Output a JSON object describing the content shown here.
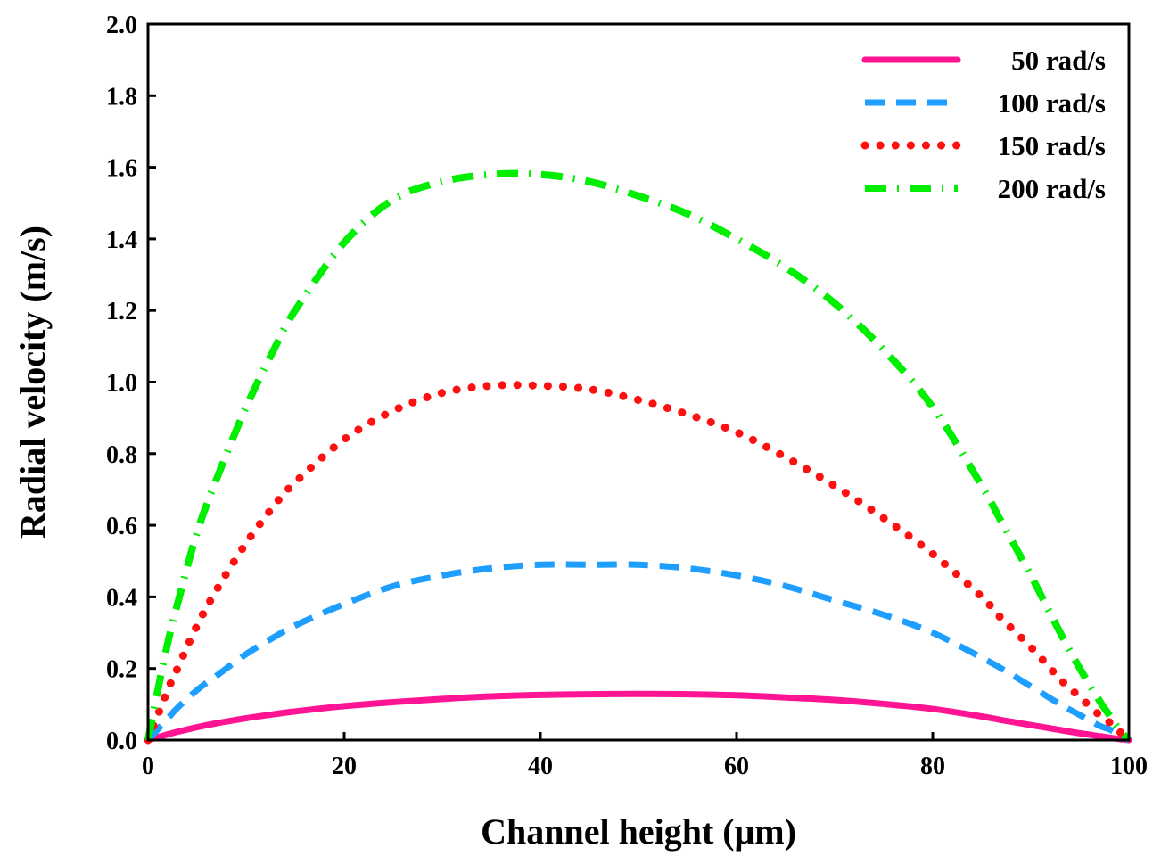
{
  "chart_data": {
    "type": "line",
    "xlabel": "Channel height (μm)",
    "ylabel": "Radial velocity (m/s)",
    "xlim": [
      0,
      100
    ],
    "ylim": [
      0.0,
      2.0
    ],
    "xticks": [
      0,
      20,
      40,
      60,
      80,
      100
    ],
    "yticks": [
      0.0,
      0.2,
      0.4,
      0.6,
      0.8,
      1.0,
      1.2,
      1.4,
      1.6,
      1.8,
      2.0
    ],
    "grid": false,
    "legend_position": "top-right",
    "x": [
      0,
      1,
      2,
      3,
      5,
      7,
      10,
      13,
      15,
      20,
      25,
      30,
      35,
      40,
      45,
      50,
      55,
      60,
      65,
      70,
      75,
      80,
      85,
      87,
      90,
      93,
      95,
      97,
      98,
      99,
      100
    ],
    "series": [
      {
        "name": "50 rad/s",
        "color": "#ff1493",
        "style": "solid",
        "values": [
          0.0,
          0.008,
          0.016,
          0.023,
          0.036,
          0.047,
          0.061,
          0.073,
          0.08,
          0.095,
          0.106,
          0.115,
          0.122,
          0.126,
          0.128,
          0.129,
          0.128,
          0.125,
          0.119,
          0.112,
          0.101,
          0.087,
          0.066,
          0.056,
          0.042,
          0.028,
          0.019,
          0.011,
          0.007,
          0.003,
          0.0
        ]
      },
      {
        "name": "100 rad/s",
        "color": "#1e9fff",
        "style": "dashed",
        "values": [
          0.0,
          0.03,
          0.06,
          0.09,
          0.14,
          0.18,
          0.24,
          0.29,
          0.32,
          0.38,
          0.43,
          0.46,
          0.48,
          0.49,
          0.49,
          0.49,
          0.48,
          0.46,
          0.43,
          0.39,
          0.35,
          0.3,
          0.23,
          0.2,
          0.15,
          0.1,
          0.07,
          0.04,
          0.03,
          0.015,
          0.0
        ]
      },
      {
        "name": "150 rad/s",
        "color": "#ff1010",
        "style": "dotted",
        "values": [
          0.0,
          0.07,
          0.14,
          0.2,
          0.32,
          0.42,
          0.55,
          0.66,
          0.72,
          0.84,
          0.92,
          0.97,
          0.99,
          0.99,
          0.98,
          0.95,
          0.91,
          0.86,
          0.79,
          0.71,
          0.62,
          0.52,
          0.4,
          0.34,
          0.26,
          0.17,
          0.12,
          0.07,
          0.05,
          0.025,
          0.0
        ]
      },
      {
        "name": "200 rad/s",
        "color": "#00ee00",
        "style": "dash-dot",
        "values": [
          0.0,
          0.14,
          0.27,
          0.38,
          0.58,
          0.73,
          0.93,
          1.1,
          1.2,
          1.39,
          1.51,
          1.56,
          1.58,
          1.58,
          1.56,
          1.52,
          1.47,
          1.4,
          1.32,
          1.22,
          1.09,
          0.93,
          0.71,
          0.61,
          0.46,
          0.3,
          0.2,
          0.11,
          0.07,
          0.03,
          0.0
        ]
      }
    ]
  }
}
